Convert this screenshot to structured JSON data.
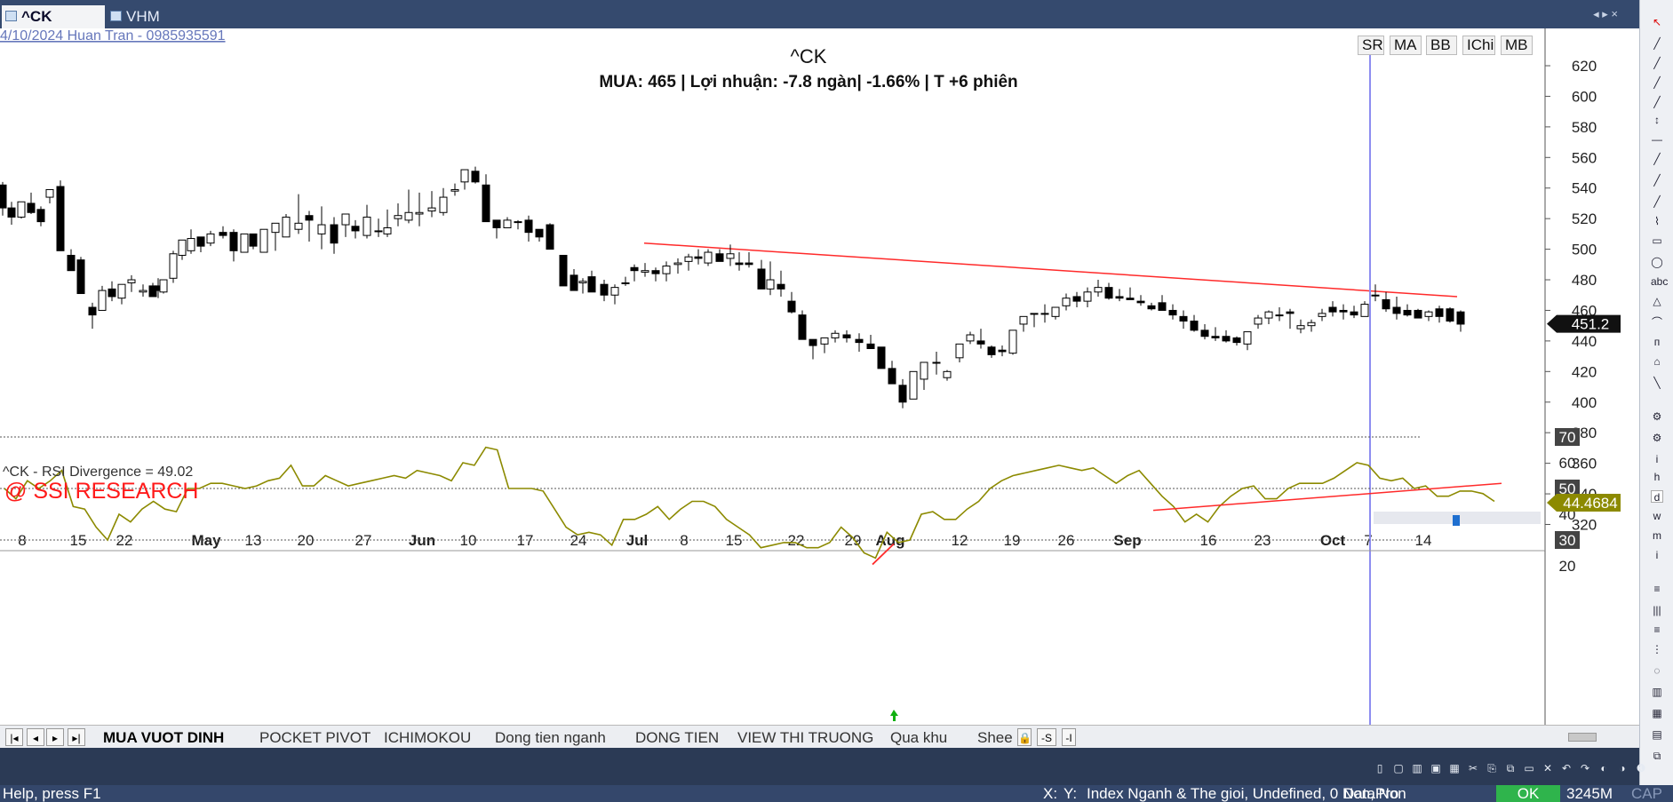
{
  "tabs": [
    {
      "label": "^CK (Daily)",
      "close": "×",
      "active": true
    },
    {
      "label": "VHM (Daily)",
      "close": "◇",
      "active": false
    }
  ],
  "tab_nav": "◂ ▸ ×",
  "watermark": "4/10/2024     Huan Tran - 0985935591",
  "chart": {
    "symbol": "^CK",
    "summary": "MUA:  465  | Lợi nhuận: -7.8 ngàn| -1.66%  | T +6 phiên",
    "indicator_buttons": [
      "SR",
      "MA",
      "BB",
      "IChi",
      "MB"
    ],
    "price_ticks": [
      "620",
      "600",
      "580",
      "560",
      "540",
      "520",
      "500",
      "480",
      "460",
      "440",
      "420",
      "400",
      "380",
      "360",
      "340",
      "320"
    ],
    "price_last": "451.2",
    "date_labels": [
      "8",
      "15",
      "22",
      "May",
      "13",
      "20",
      "27",
      "Jun",
      "10",
      "17",
      "24",
      "Jul",
      "8",
      "15",
      "22",
      "29",
      "Aug",
      "12",
      "19",
      "26",
      "Sep",
      "16",
      "23",
      "Oct",
      "7",
      "14"
    ],
    "rsi_title": "^CK - RSI Divergence = 49.02",
    "rsi_brand": "@ SSI RESEARCH",
    "rsi_ticks": [
      "70",
      "60",
      "50",
      "40",
      "30",
      "20"
    ],
    "rsi_last": "44.4684"
  },
  "chart_data": {
    "type": "candlestick",
    "ylim": [
      310,
      635
    ],
    "trendline_color": "#ff2a2a",
    "rsi_color": "#8c8a00",
    "rsi_ylim": [
      17,
      74
    ],
    "rsi_levels": [
      70,
      50,
      30
    ],
    "last_price": 451.2,
    "last_rsi": 44.4684
  },
  "sheet_tabs": [
    "MUA VUOT DINH",
    "POCKET PIVOT",
    "ICHIMOKOU",
    "Dong tien nganh",
    "DONG TIEN",
    "VIEW THI TRUONG",
    "Qua khu",
    "Shee"
  ],
  "status": {
    "help": "Help, press F1",
    "x": "X:",
    "y": "Y:",
    "info": "Index Nganh & The gioi, Undefined, 0 Non, Non",
    "source": "DataPro",
    "ok": "OK",
    "mem": "3245M",
    "cap": "CAP"
  }
}
